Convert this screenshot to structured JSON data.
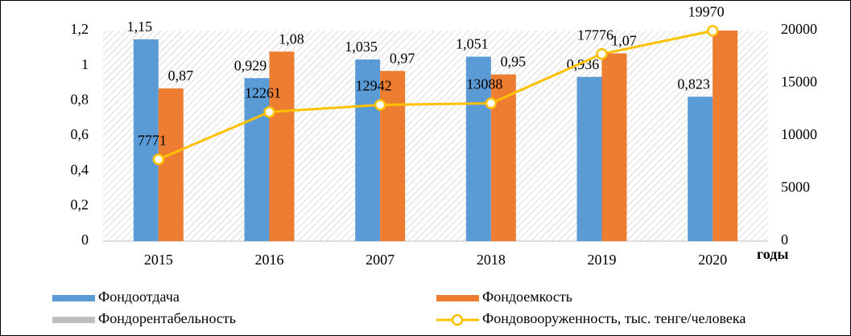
{
  "chart_data": {
    "type": "bar",
    "categories": [
      "2015",
      "2016",
      "2007",
      "2018",
      "2019",
      "2020"
    ],
    "x_label": "годы",
    "ylim": [
      0,
      1.2
    ],
    "yticks": [
      0,
      {
        "value": 0.2,
        "label": "0,2"
      },
      {
        "value": 0.4,
        "label": "0,4"
      },
      {
        "value": 0.6,
        "label": "0,6"
      },
      {
        "value": 0.8,
        "label": "0,8"
      },
      1,
      {
        "value": 1.2,
        "label": "1,2"
      }
    ],
    "y2lim": [
      0,
      20000
    ],
    "y2ticks": [
      0,
      5000,
      10000,
      15000,
      20000
    ],
    "series": [
      {
        "name": "Фондоотдача",
        "color": "#5b9bd5",
        "type": "bar",
        "values": [
          1.15,
          0.929,
          1.035,
          1.051,
          0.936,
          0.823
        ],
        "value_labels": [
          "1,15",
          "0,929",
          "1,035",
          "1,051",
          "0,936",
          "0,823"
        ]
      },
      {
        "name": "Фондоемкость",
        "color": "#ed7d31",
        "type": "bar",
        "values": [
          0.87,
          1.08,
          0.97,
          0.95,
          1.07,
          1.2
        ],
        "value_labels": [
          "0,87",
          "1,08",
          "0,97",
          "0,95",
          "1,07",
          null
        ]
      },
      {
        "name": "Фондорентабельность",
        "color": "#bfbfbf",
        "type": "hatch"
      },
      {
        "name": "Фондовооруженность, тыс. тенге/человека",
        "color": "#ffc000",
        "type": "line",
        "axis": "y2",
        "values": [
          7771,
          12261,
          12942,
          13088,
          17776,
          19970
        ]
      }
    ]
  }
}
